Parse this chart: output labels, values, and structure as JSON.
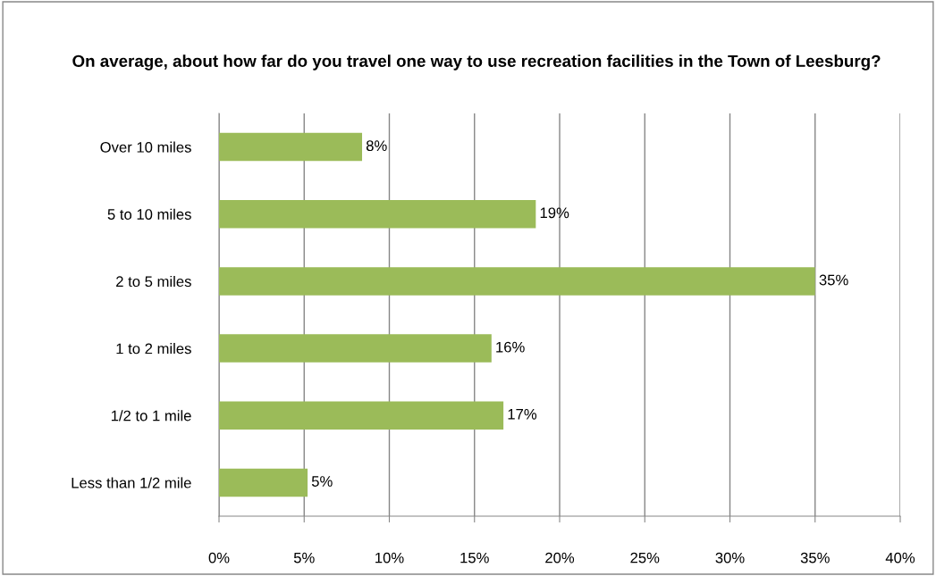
{
  "chart_data": {
    "type": "bar",
    "orientation": "horizontal",
    "title": "On average, about how far do you travel one way to use recreation facilities in the Town of Leesburg?",
    "categories": [
      "Over 10 miles",
      "5 to 10 miles",
      "2 to 5 miles",
      "1 to 2 miles",
      "1/2 to 1 mile",
      "Less than 1/2 mile"
    ],
    "values": [
      8.4,
      18.6,
      35,
      16,
      16.7,
      5.2
    ],
    "value_labels": [
      "8%",
      "19%",
      "35%",
      "16%",
      "17%",
      "5%"
    ],
    "color": "#9bbb59",
    "xlim": [
      0,
      40
    ],
    "xticks": [
      {
        "value": 0,
        "label": "0%"
      },
      {
        "value": 5,
        "label": "5%"
      },
      {
        "value": 10,
        "label": "10%"
      },
      {
        "value": 15,
        "label": "15%"
      },
      {
        "value": 20,
        "label": "20%"
      },
      {
        "value": 25,
        "label": "25%"
      },
      {
        "value": 30,
        "label": "30%"
      },
      {
        "value": 35,
        "label": "35%"
      },
      {
        "value": 40,
        "label": "40%"
      }
    ],
    "grid": "x",
    "legend": false
  }
}
